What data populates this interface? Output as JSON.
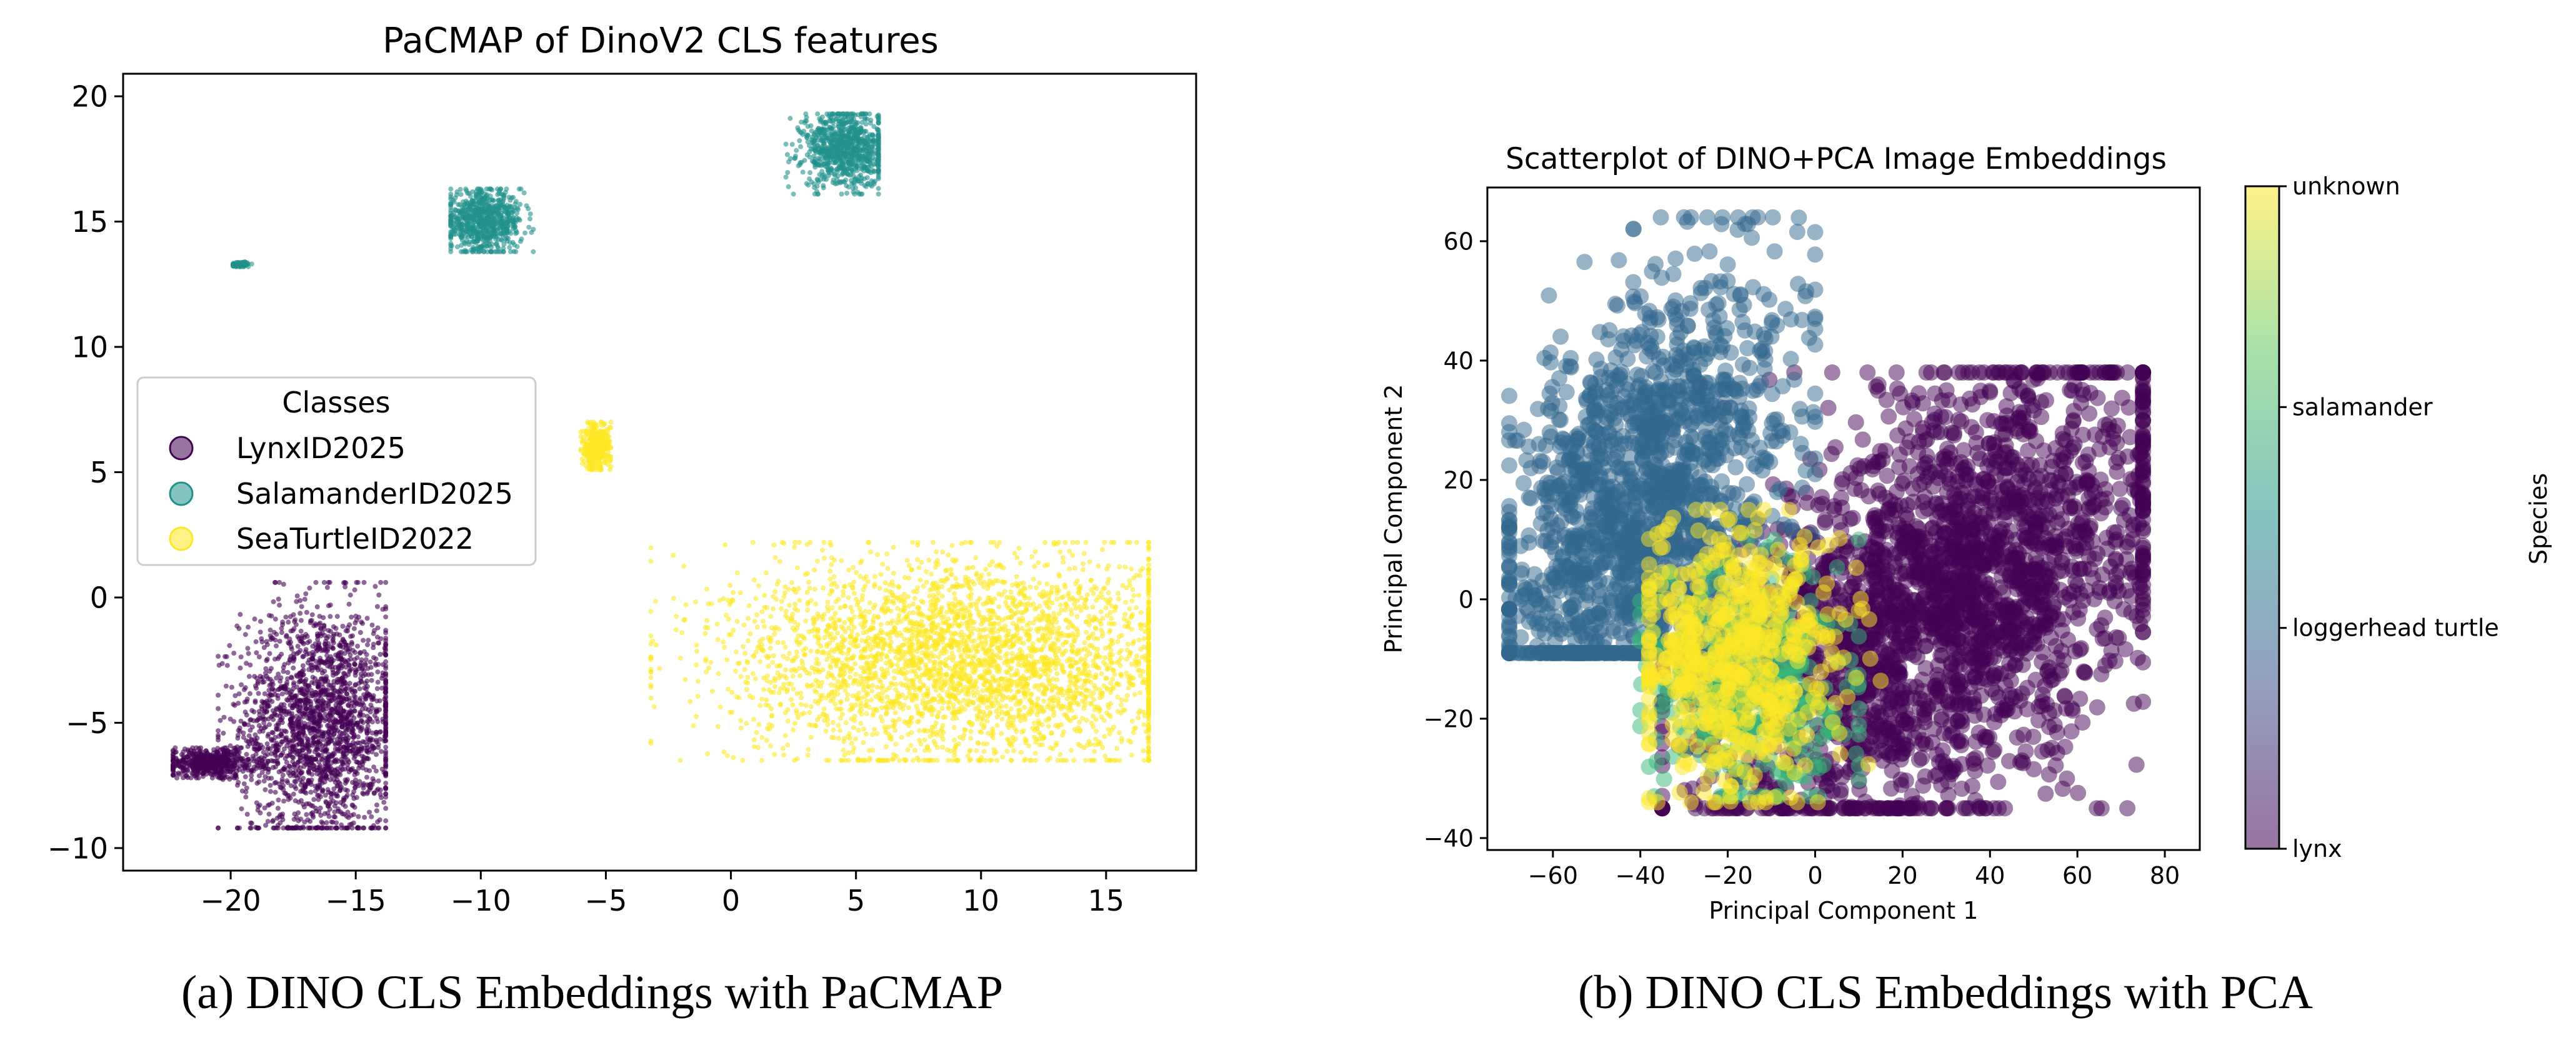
{
  "chart_data": [
    {
      "type": "scatter",
      "title": "PaCMAP of DinoV2 CLS features",
      "xlabel": "",
      "ylabel": "",
      "xlim": [
        -24.3,
        18.6
      ],
      "ylim": [
        -10.9,
        20.9
      ],
      "xticks": [
        "−20",
        "−15",
        "−10",
        "−5",
        "0",
        "5",
        "10",
        "15"
      ],
      "xtick_values": [
        -20,
        -15,
        -10,
        -5,
        0,
        5,
        10,
        15
      ],
      "yticks": [
        "−10",
        "−5",
        "0",
        "5",
        "10",
        "15",
        "20"
      ],
      "ytick_values": [
        -10,
        -5,
        0,
        5,
        10,
        15,
        20
      ],
      "grid": false,
      "legend": {
        "title": "Classes",
        "position": "center-left",
        "entries": [
          "LynxID2025",
          "SalamanderID2025",
          "SeaTurtleID2022"
        ]
      },
      "series": [
        {
          "name": "LynxID2025",
          "color": "#440154",
          "clusters": [
            {
              "center": [
                -16.4,
                -5.0
              ],
              "x_range": [
                -20.5,
                -13.8
              ],
              "y_range": [
                -9.2,
                0.6
              ]
            },
            {
              "center": [
                -20.8,
                -6.6
              ],
              "x_range": [
                -22.3,
                -18.5
              ],
              "y_range": [
                -7.2,
                -6.0
              ]
            }
          ]
        },
        {
          "name": "SalamanderID2025",
          "color": "#21918c",
          "clusters": [
            {
              "center": [
                -9.9,
                15.0
              ],
              "x_range": [
                -11.2,
                -7.9
              ],
              "y_range": [
                13.8,
                16.3
              ]
            },
            {
              "center": [
                4.6,
                17.9
              ],
              "x_range": [
                2.2,
                5.9
              ],
              "y_range": [
                16.1,
                19.3
              ]
            },
            {
              "center": [
                -19.6,
                13.3
              ],
              "x_range": [
                -19.9,
                -19.1
              ],
              "y_range": [
                13.2,
                13.4
              ]
            }
          ]
        },
        {
          "name": "SeaTurtleID2022",
          "color": "#fde725",
          "clusters": [
            {
              "center": [
                9.5,
                -2.5
              ],
              "x_range": [
                -3.2,
                16.7
              ],
              "y_range": [
                -6.5,
                2.2
              ]
            },
            {
              "center": [
                -5.4,
                6.0
              ],
              "x_range": [
                -6.0,
                -4.8
              ],
              "y_range": [
                5.1,
                7.0
              ]
            }
          ]
        }
      ]
    },
    {
      "type": "scatter",
      "title": "Scatterplot of DINO+PCA Image Embeddings",
      "xlabel": "Principal Component 1",
      "ylabel": "Principal Component 2",
      "xlim": [
        -75,
        88
      ],
      "ylim": [
        -42,
        69
      ],
      "xticks": [
        "−60",
        "−40",
        "−20",
        "0",
        "20",
        "40",
        "60",
        "80"
      ],
      "xtick_values": [
        -60,
        -40,
        -20,
        0,
        20,
        40,
        60,
        80
      ],
      "yticks": [
        "−40",
        "−20",
        "0",
        "20",
        "40",
        "60"
      ],
      "ytick_values": [
        -40,
        -20,
        0,
        20,
        40,
        60
      ],
      "grid": false,
      "colorbar": {
        "label": "Species",
        "ticks": [
          "lynx",
          "loggerhead turtle",
          "salamander",
          "unknown"
        ],
        "range": [
          0,
          3
        ]
      },
      "series": [
        {
          "name": "lynx",
          "color": "#440154",
          "clusters": [
            {
              "center": [
                30,
                0
              ],
              "x_range": [
                -35,
                75
              ],
              "y_range": [
                -35,
                38
              ]
            }
          ]
        },
        {
          "name": "loggerhead turtle",
          "color": "#31688e",
          "clusters": [
            {
              "center": [
                -40,
                15
              ],
              "x_range": [
                -70,
                0
              ],
              "y_range": [
                -9,
                64
              ]
            }
          ]
        },
        {
          "name": "salamander",
          "color": "#35b779",
          "clusters": [
            {
              "center": [
                -15,
                -15
              ],
              "x_range": [
                -40,
                10
              ],
              "y_range": [
                -33,
                10
              ]
            }
          ]
        },
        {
          "name": "unknown",
          "color": "#fde725",
          "clusters": [
            {
              "center": [
                -18,
                -10
              ],
              "x_range": [
                -38,
                15
              ],
              "y_range": [
                -34,
                15
              ]
            }
          ]
        }
      ]
    }
  ],
  "captions": {
    "a": "(a) DINO CLS Embeddings with PaCMAP",
    "b": "(b) DINO CLS Embeddings with PCA"
  }
}
